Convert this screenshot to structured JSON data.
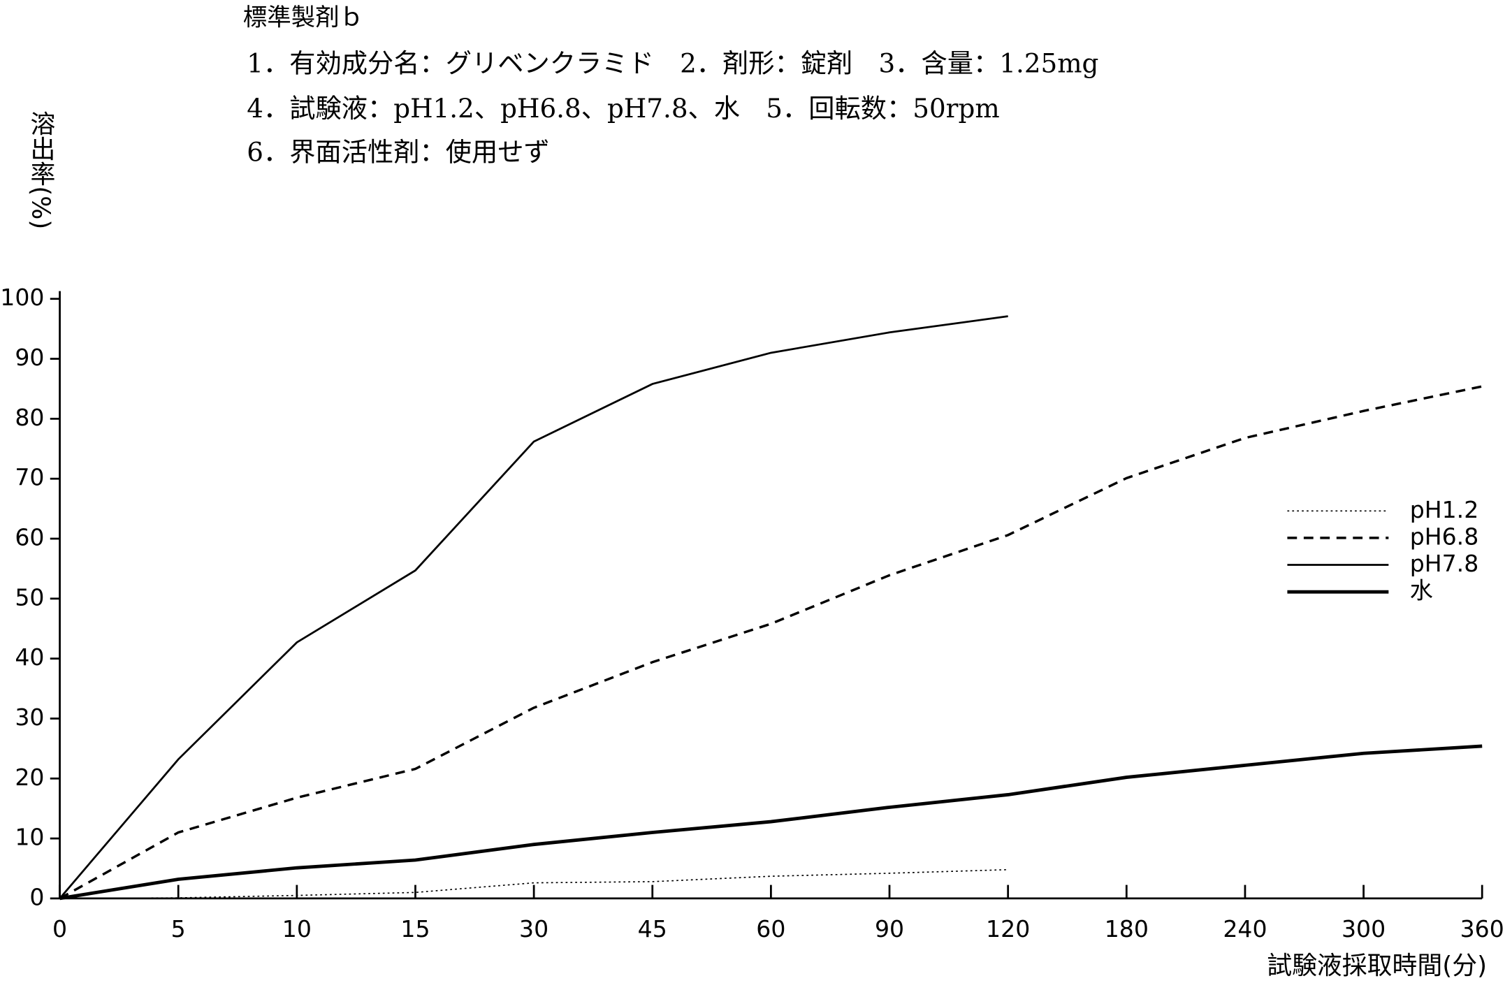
{
  "chart_data": {
    "type": "line",
    "title": "標準製剤ｂ",
    "subtitle": [
      "1．有効成分名：グリベンクラミド　2．剤形：錠剤　3．含量：1.25mg",
      "4．試験液：pH1.2、pH6.8、pH7.8、水　5．回転数：50rpm",
      "6．界面活性剤：使用せず"
    ],
    "y_label": "溶出率(%)",
    "x_label": "試験液採取時間(分)",
    "categories": [
      "0",
      "5",
      "10",
      "15",
      "30",
      "45",
      "60",
      "90",
      "120",
      "180",
      "240",
      "300",
      "360"
    ],
    "series": [
      {
        "name": "pH1.2",
        "color": "#000000",
        "style": "dotted",
        "width": 1.2,
        "values": [
          0,
          0.1,
          0.5,
          1,
          2.6,
          2.8,
          3.7,
          4.2,
          4.8,
          null,
          null,
          null,
          null
        ]
      },
      {
        "name": "pH6.8",
        "color": "#000000",
        "style": "dashed",
        "width": 2.5,
        "values": [
          0,
          11,
          16.8,
          21.6,
          31.8,
          39.4,
          45.8,
          53.9,
          60.6,
          70.1,
          76.8,
          81.3,
          85.4
        ]
      },
      {
        "name": "pH7.8",
        "color": "#000000",
        "style": "solid",
        "width": 2,
        "values": [
          0,
          23.2,
          42.7,
          54.7,
          76.2,
          85.8,
          91,
          94.4,
          97.1,
          null,
          null,
          null,
          null
        ]
      },
      {
        "name": "水",
        "color": "#000000",
        "style": "solid",
        "width": 3.5,
        "values": [
          0,
          3.2,
          5.1,
          6.4,
          9,
          11,
          12.8,
          15.2,
          17.3,
          20.2,
          22.2,
          24.2,
          25.4
        ]
      }
    ],
    "ylim": [
      0,
      100
    ],
    "yticks": [
      0,
      10,
      20,
      30,
      40,
      50,
      60,
      70,
      80,
      90,
      100
    ],
    "legend": "right",
    "grid": false
  }
}
